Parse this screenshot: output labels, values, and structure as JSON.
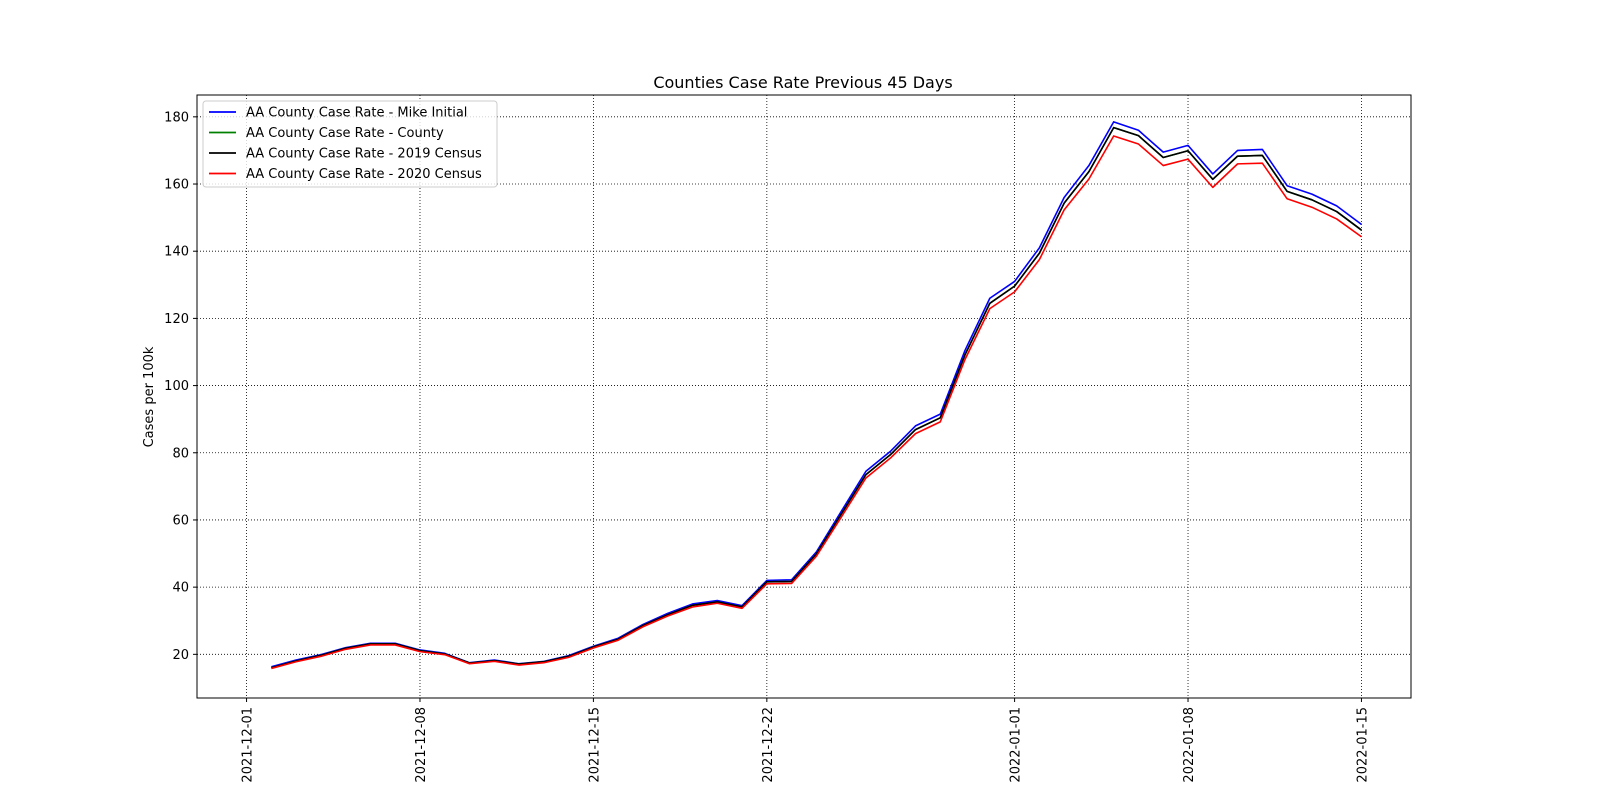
{
  "chart_data": {
    "type": "line",
    "title": "Counties Case Rate Previous 45 Days",
    "xlabel": "",
    "ylabel": "Cases per 100k",
    "xlim": [
      "2021-11-29",
      "2022-01-17"
    ],
    "ylim": [
      7,
      186.5
    ],
    "grid": true,
    "grid_style": "dotted",
    "legend_position": "top-left",
    "x_ticks": [
      "2021-12-01",
      "2021-12-08",
      "2021-12-15",
      "2021-12-22",
      "2022-01-01",
      "2022-01-08",
      "2022-01-15"
    ],
    "y_ticks": [
      20,
      40,
      60,
      80,
      100,
      120,
      140,
      160,
      180
    ],
    "x": [
      "2021-12-02",
      "2021-12-03",
      "2021-12-04",
      "2021-12-05",
      "2021-12-06",
      "2021-12-07",
      "2021-12-08",
      "2021-12-09",
      "2021-12-10",
      "2021-12-11",
      "2021-12-12",
      "2021-12-13",
      "2021-12-14",
      "2021-12-15",
      "2021-12-16",
      "2021-12-17",
      "2021-12-18",
      "2021-12-19",
      "2021-12-20",
      "2021-12-21",
      "2021-12-22",
      "2021-12-23",
      "2021-12-24",
      "2021-12-25",
      "2021-12-26",
      "2021-12-27",
      "2021-12-28",
      "2021-12-29",
      "2021-12-30",
      "2021-12-31",
      "2022-01-01",
      "2022-01-02",
      "2022-01-03",
      "2022-01-04",
      "2022-01-05",
      "2022-01-06",
      "2022-01-07",
      "2022-01-08",
      "2022-01-09",
      "2022-01-10",
      "2022-01-11",
      "2022-01-12",
      "2022-01-13",
      "2022-01-14",
      "2022-01-15"
    ],
    "series": [
      {
        "name": "AA County Case Rate - Mike Initial",
        "color": "#0000ff",
        "values": [
          16.3,
          18.3,
          19.9,
          22.0,
          23.3,
          23.3,
          21.3,
          20.3,
          17.5,
          18.3,
          17.2,
          17.9,
          19.6,
          22.4,
          24.8,
          28.9,
          32.2,
          35.0,
          36.0,
          34.5,
          42.0,
          42.2,
          50.5,
          62.5,
          74.5,
          80.5,
          88.0,
          91.5,
          110.5,
          126.0,
          131.0,
          141.0,
          156.0,
          165.5,
          178.5,
          176.0,
          169.5,
          171.5,
          163.0,
          170.0,
          170.3,
          159.5,
          157.0,
          153.5,
          148.0
        ]
      },
      {
        "name": "AA County Case Rate - County",
        "color": "#008000",
        "values": [
          16.0,
          18.0,
          19.7,
          21.8,
          23.1,
          23.1,
          21.1,
          20.1,
          17.4,
          18.1,
          17.1,
          17.8,
          19.4,
          22.2,
          24.5,
          28.6,
          31.8,
          34.6,
          35.6,
          34.1,
          41.6,
          41.7,
          49.9,
          61.7,
          73.5,
          79.5,
          86.9,
          90.4,
          109.2,
          124.5,
          129.6,
          139.4,
          154.3,
          163.7,
          176.8,
          174.4,
          167.9,
          169.9,
          161.4,
          168.3,
          168.5,
          157.8,
          155.3,
          151.8,
          146.3
        ]
      },
      {
        "name": "AA County Case Rate - 2019 Census",
        "color": "#000000",
        "values": [
          16.0,
          18.0,
          19.7,
          21.8,
          23.1,
          23.1,
          21.1,
          20.1,
          17.4,
          18.1,
          17.1,
          17.8,
          19.4,
          22.2,
          24.5,
          28.6,
          31.8,
          34.6,
          35.6,
          34.1,
          41.6,
          41.7,
          49.9,
          61.7,
          73.5,
          79.5,
          86.9,
          90.4,
          109.2,
          124.5,
          129.6,
          139.4,
          154.3,
          163.7,
          176.8,
          174.4,
          167.9,
          169.9,
          161.4,
          168.3,
          168.5,
          157.8,
          155.3,
          151.8,
          146.3
        ]
      },
      {
        "name": "AA County Case Rate - 2020 Census",
        "color": "#ff0000",
        "values": [
          15.8,
          17.8,
          19.4,
          21.5,
          22.8,
          22.8,
          20.8,
          19.9,
          17.2,
          17.9,
          16.8,
          17.5,
          19.1,
          21.9,
          24.2,
          28.2,
          31.4,
          34.1,
          35.2,
          33.7,
          41.0,
          41.1,
          49.2,
          60.8,
          72.5,
          78.5,
          85.7,
          89.2,
          107.8,
          122.9,
          127.9,
          137.5,
          152.3,
          161.5,
          174.3,
          171.9,
          165.5,
          167.4,
          159.0,
          166.0,
          166.2,
          155.6,
          153.1,
          149.6,
          144.3
        ]
      }
    ]
  }
}
